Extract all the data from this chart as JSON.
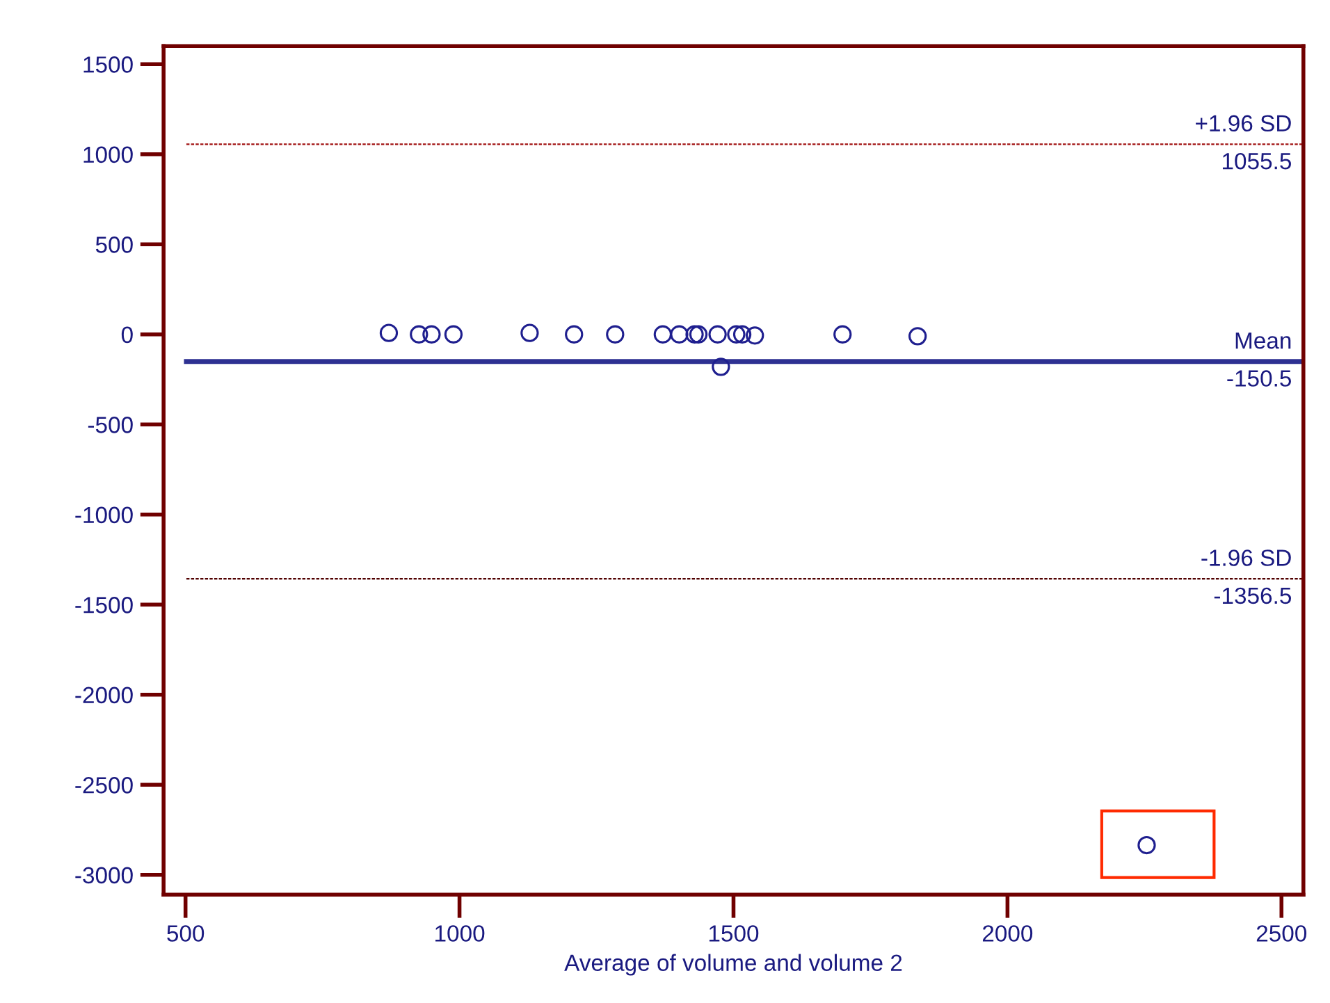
{
  "chart_data": {
    "type": "scatter",
    "xlabel": "Average of volume and volume 2",
    "x": [
      871,
      926,
      949,
      989,
      1128,
      1209,
      1284,
      1371,
      1401,
      1429,
      1436,
      1471,
      1477,
      1505,
      1516,
      1539,
      1699,
      1836,
      2254
    ],
    "values": [
      8,
      0,
      0,
      0,
      8,
      0,
      0,
      0,
      0,
      0,
      0,
      0,
      -180,
      0,
      0,
      -6,
      0,
      -10,
      -2835
    ],
    "color": "#1f1f8f",
    "marker": "circle",
    "xlim": [
      460,
      2540
    ],
    "xticks": [
      500,
      1000,
      1500,
      2000,
      2500
    ],
    "ylim": [
      -3110,
      1600
    ],
    "yticks": [
      -3000,
      -2500,
      -2000,
      -1500,
      -1000,
      -500,
      0,
      500,
      1000,
      1500
    ],
    "grid": false,
    "legend": false,
    "ref_lines": [
      {
        "axis": "y",
        "value": 1055.5,
        "label": "+1.96 SD",
        "color": "#a01010",
        "line_style": "dashed"
      },
      {
        "axis": "y",
        "value": -150.5,
        "label": "Mean",
        "color": "#2e3192",
        "line_style": "solid"
      },
      {
        "axis": "y",
        "value": -1356.5,
        "label": "-1.96 SD",
        "color": "#500000",
        "line_style": "dashed"
      }
    ],
    "annotations": [
      {
        "text": "1055.5",
        "y": 1055.5
      },
      {
        "text": "-150.5",
        "y": -150.5
      },
      {
        "text": "-1356.5",
        "y": -1356.5
      }
    ]
  }
}
